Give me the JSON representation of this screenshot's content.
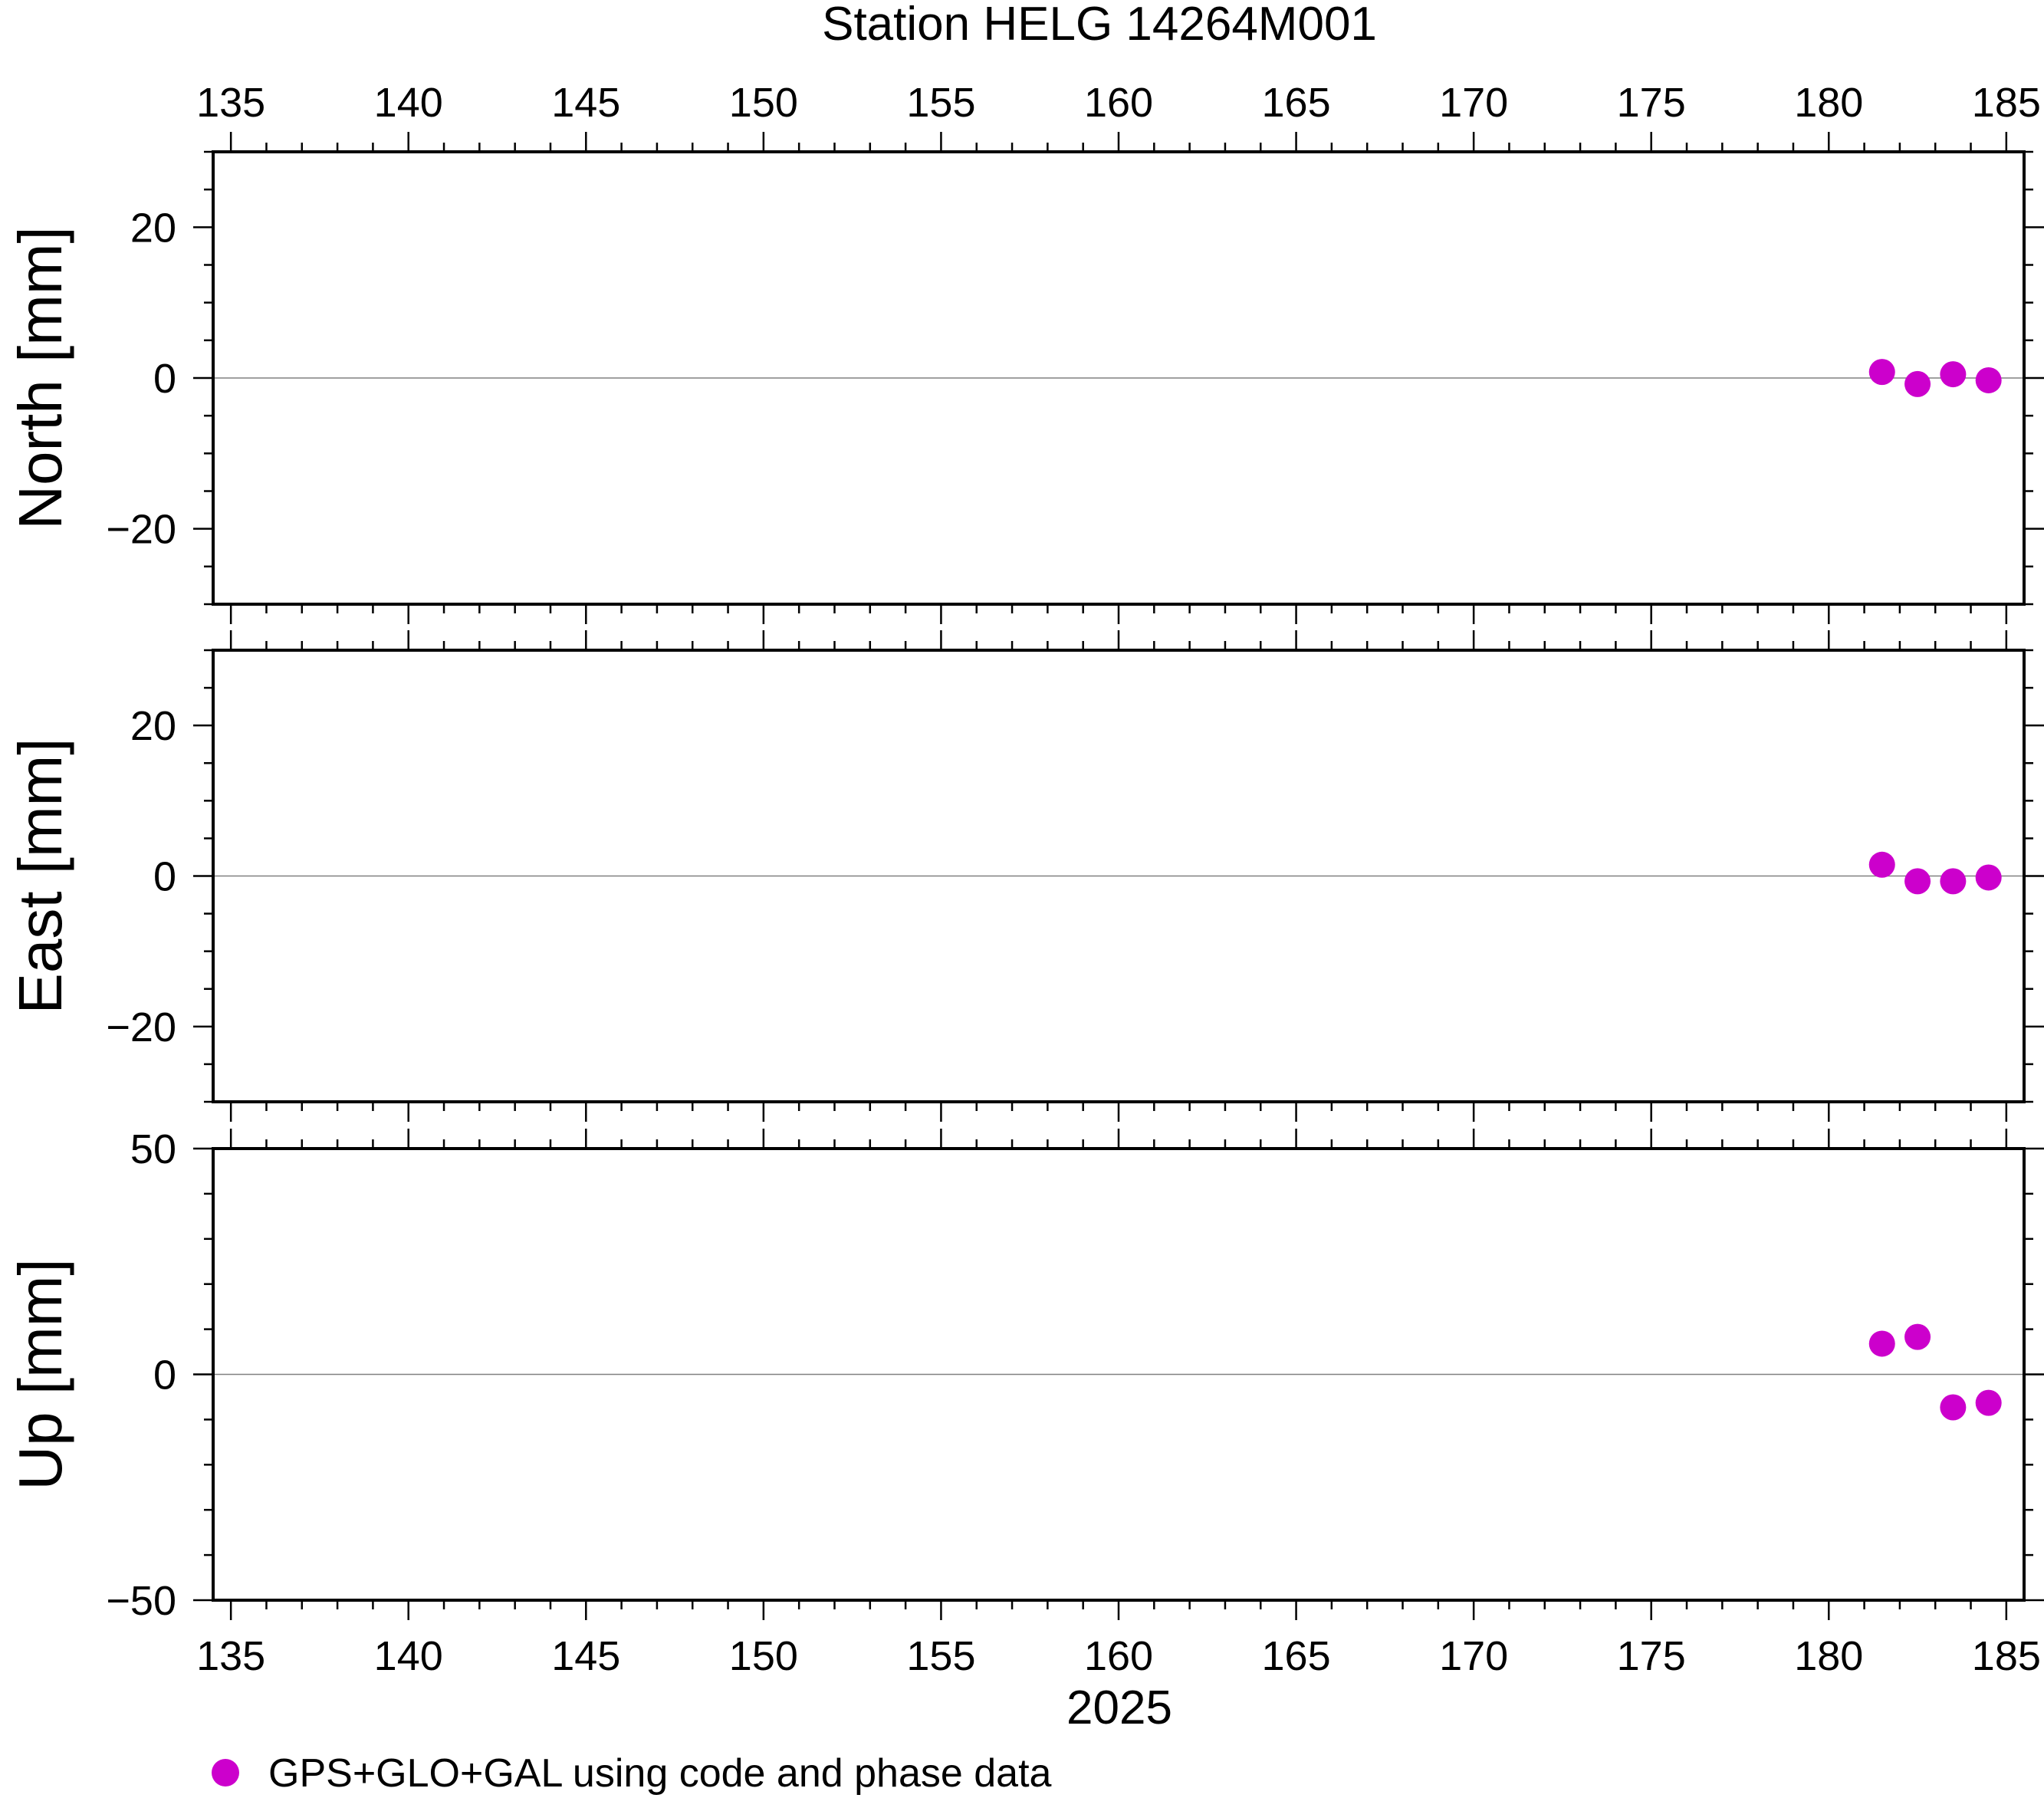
{
  "chart_data": {
    "type": "scatter",
    "title": "Station HELG 14264M001",
    "xlabel": "2025",
    "xlim": [
      134.5,
      185.5
    ],
    "xticks": [
      135,
      140,
      145,
      150,
      155,
      160,
      165,
      170,
      175,
      180,
      185
    ],
    "xtick_labels": [
      "135",
      "140",
      "145",
      "150",
      "155",
      "160",
      "165",
      "170",
      "175",
      "180",
      "185"
    ],
    "x_minor_step": 1,
    "point_color": "#cc00cc",
    "series_name": "GPS+GLO+GAL using code and phase data",
    "x": [
      181.5,
      182.5,
      183.5,
      184.5
    ],
    "panels": [
      {
        "ylabel": "North [mm]",
        "ylim": [
          -30,
          30
        ],
        "yticks": [
          20,
          0,
          -20
        ],
        "ytick_labels": [
          "20",
          "0",
          "−20"
        ],
        "y_minor_step": 5,
        "values": [
          0.8,
          -0.8,
          0.5,
          -0.3
        ]
      },
      {
        "ylabel": "East [mm]",
        "ylim": [
          -30,
          30
        ],
        "yticks": [
          20,
          0,
          -20
        ],
        "ytick_labels": [
          "20",
          "0",
          "−20"
        ],
        "y_minor_step": 5,
        "values": [
          1.5,
          -0.7,
          -0.7,
          -0.2
        ]
      },
      {
        "ylabel": "Up [mm]",
        "ylim": [
          -50,
          50
        ],
        "yticks": [
          50,
          0,
          -50
        ],
        "ytick_labels": [
          "50",
          "0",
          "−50"
        ],
        "y_minor_step": 10,
        "values": [
          6.8,
          8.3,
          -7.3,
          -6.3
        ]
      }
    ]
  }
}
